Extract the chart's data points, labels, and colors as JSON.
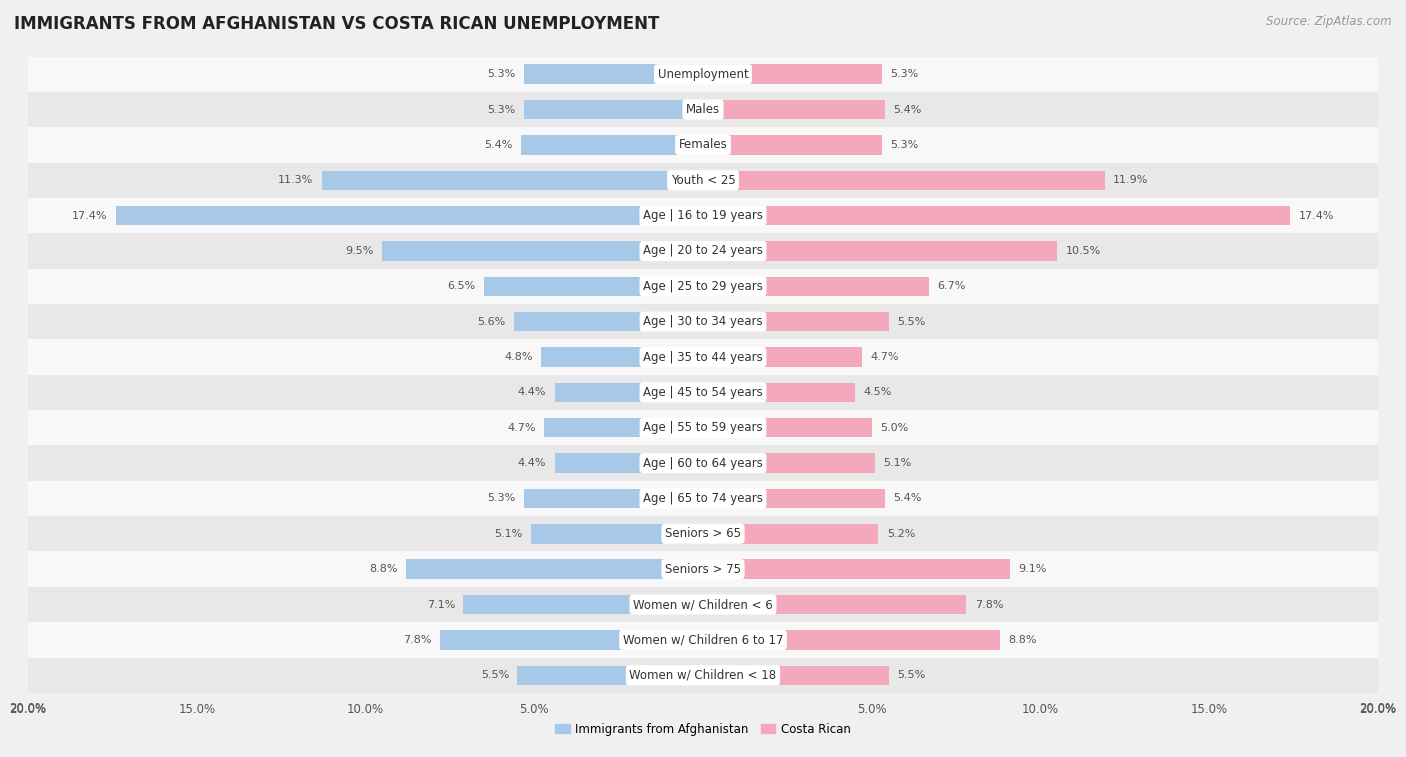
{
  "title": "IMMIGRANTS FROM AFGHANISTAN VS COSTA RICAN UNEMPLOYMENT",
  "source": "Source: ZipAtlas.com",
  "categories": [
    "Unemployment",
    "Males",
    "Females",
    "Youth < 25",
    "Age | 16 to 19 years",
    "Age | 20 to 24 years",
    "Age | 25 to 29 years",
    "Age | 30 to 34 years",
    "Age | 35 to 44 years",
    "Age | 45 to 54 years",
    "Age | 55 to 59 years",
    "Age | 60 to 64 years",
    "Age | 65 to 74 years",
    "Seniors > 65",
    "Seniors > 75",
    "Women w/ Children < 6",
    "Women w/ Children 6 to 17",
    "Women w/ Children < 18"
  ],
  "left_values": [
    5.3,
    5.3,
    5.4,
    11.3,
    17.4,
    9.5,
    6.5,
    5.6,
    4.8,
    4.4,
    4.7,
    4.4,
    5.3,
    5.1,
    8.8,
    7.1,
    7.8,
    5.5
  ],
  "right_values": [
    5.3,
    5.4,
    5.3,
    11.9,
    17.4,
    10.5,
    6.7,
    5.5,
    4.7,
    4.5,
    5.0,
    5.1,
    5.4,
    5.2,
    9.1,
    7.8,
    8.8,
    5.5
  ],
  "left_color": "#a8c8e8",
  "right_color": "#f4a8bc",
  "left_label": "Immigrants from Afghanistan",
  "right_label": "Costa Rican",
  "background_color": "#f0f0f0",
  "row_color_odd": "#f8f8f8",
  "row_color_even": "#e8e8e8",
  "xlim": 20.0,
  "bar_height": 0.55,
  "title_fontsize": 12,
  "label_fontsize": 8.5,
  "tick_fontsize": 8.5,
  "source_fontsize": 8.5,
  "value_fontsize": 8.0
}
